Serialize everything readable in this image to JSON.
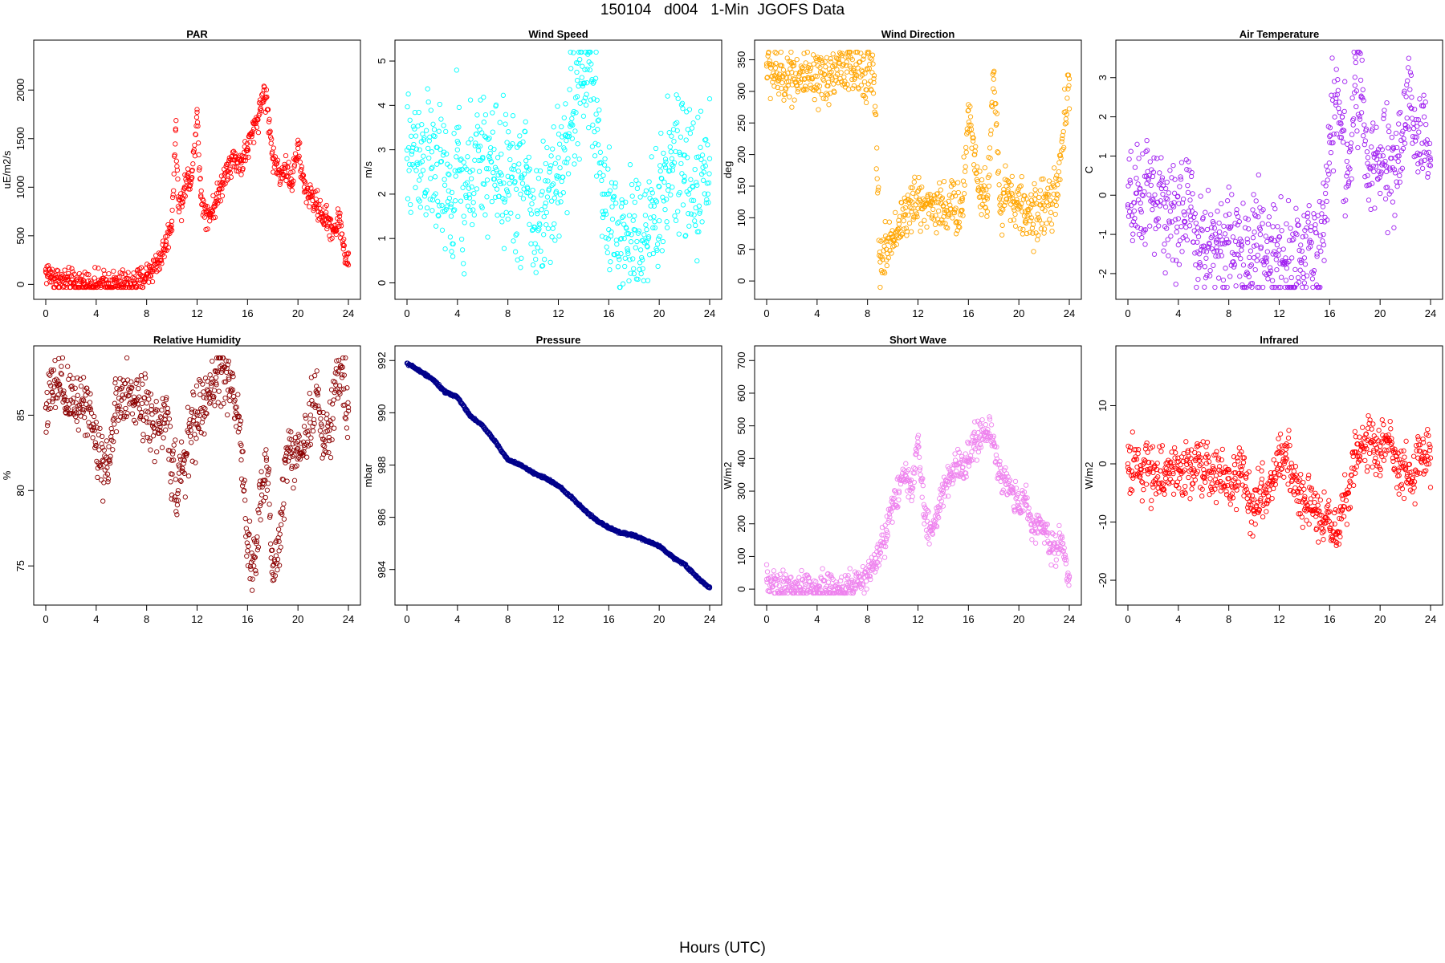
{
  "figure": {
    "title": "150104   d004   1-Min  JGOFS Data",
    "xlabel": "Hours (UTC)"
  },
  "chart_data": [
    {
      "type": "scatter",
      "title": "PAR",
      "xlabel": "",
      "ylabel": "uE/m2/s",
      "color": "#ff0000",
      "xlim": [
        0,
        24
      ],
      "ylim": [
        -30,
        2390
      ],
      "xticks": [
        0,
        4,
        8,
        12,
        16,
        20,
        24
      ],
      "yticks": [
        0,
        500,
        1000,
        1500,
        2000
      ],
      "noise": 0.05,
      "x": [
        0,
        0.5,
        1,
        2,
        3,
        4,
        5,
        6,
        7,
        7.5,
        8,
        8.5,
        9,
        9.5,
        10,
        10.3,
        10.5,
        10.8,
        11,
        11.3,
        11.6,
        12,
        12.3,
        12.7,
        13,
        13.5,
        14,
        14.5,
        15,
        15.5,
        16,
        16.5,
        17,
        17.3,
        17.6,
        18,
        18.5,
        19,
        19.5,
        20,
        20.5,
        21,
        21.5,
        22,
        22.5,
        23,
        23.3,
        23.6,
        24
      ],
      "y": [
        130,
        80,
        40,
        15,
        5,
        3,
        3,
        5,
        15,
        40,
        100,
        170,
        250,
        400,
        650,
        1600,
        900,
        800,
        1000,
        1100,
        1100,
        1800,
        900,
        750,
        720,
        850,
        1050,
        1250,
        1280,
        1250,
        1400,
        1600,
        1800,
        2000,
        1800,
        1300,
        1150,
        1200,
        1050,
        1400,
        1000,
        900,
        820,
        700,
        620,
        560,
        700,
        400,
        200
      ]
    },
    {
      "type": "scatter",
      "title": "Wind Speed",
      "xlabel": "",
      "ylabel": "m/s",
      "color": "#00ffff",
      "xlim": [
        0,
        24
      ],
      "ylim": [
        -0.1,
        5.2
      ],
      "xticks": [
        0,
        4,
        8,
        12,
        16,
        20,
        24
      ],
      "yticks": [
        0,
        1,
        2,
        3,
        4,
        5
      ],
      "noise": 0.25,
      "x": [
        0,
        1,
        2,
        3,
        3.5,
        4,
        4.5,
        5,
        6,
        7,
        8,
        9,
        9.5,
        10,
        11,
        11.5,
        12,
        12.5,
        13,
        13.5,
        14,
        14.5,
        15,
        15.5,
        16,
        17,
        18,
        19,
        20,
        20.5,
        21,
        22,
        23,
        24
      ],
      "y": [
        2.8,
        3.0,
        2.6,
        2.2,
        1.5,
        3.0,
        1.5,
        2.5,
        2.8,
        2.6,
        2.4,
        2.0,
        2.6,
        1.2,
        1.8,
        2.2,
        2.4,
        3.0,
        3.6,
        4.2,
        4.5,
        4.8,
        3.8,
        2.0,
        1.2,
        1.0,
        1.2,
        1.2,
        1.4,
        2.6,
        2.8,
        2.4,
        2.2,
        2.8
      ]
    },
    {
      "type": "scatter",
      "title": "Wind Direction",
      "xlabel": "",
      "ylabel": "deg",
      "color": "#ffa500",
      "xlim": [
        0,
        24
      ],
      "ylim": [
        -10,
        362
      ],
      "xticks": [
        0,
        4,
        8,
        12,
        16,
        20,
        24
      ],
      "yticks": [
        0,
        50,
        100,
        150,
        200,
        250,
        300,
        350
      ],
      "noise": 0.1,
      "x": [
        0,
        1,
        2,
        3,
        4,
        5,
        6,
        7,
        8,
        8.5,
        9,
        9.5,
        10,
        10.5,
        11,
        11.5,
        12,
        13,
        14,
        15,
        15.5,
        16,
        16.5,
        17,
        17.5,
        18,
        18.5,
        19,
        19.5,
        20,
        20.5,
        21,
        22,
        23,
        24
      ],
      "y": [
        340,
        320,
        330,
        320,
        310,
        325,
        340,
        330,
        335,
        320,
        30,
        50,
        70,
        90,
        105,
        115,
        125,
        120,
        118,
        115,
        112,
        270,
        200,
        140,
        130,
        330,
        120,
        150,
        130,
        120,
        110,
        100,
        120,
        130,
        320
      ]
    },
    {
      "type": "scatter",
      "title": "Air Temperature",
      "xlabel": "",
      "ylabel": "C",
      "color": "#a020f0",
      "xlim": [
        0,
        24
      ],
      "ylim": [
        -2.35,
        3.65
      ],
      "xticks": [
        0,
        4,
        8,
        12,
        16,
        20,
        24
      ],
      "yticks": [
        -2,
        -1,
        0,
        1,
        2,
        3
      ],
      "noise": 0.2,
      "x": [
        0,
        0.5,
        1,
        1.5,
        2,
        3,
        4,
        4.5,
        5,
        5.5,
        6,
        7,
        8,
        9,
        9.5,
        10,
        10.5,
        11,
        11.5,
        12,
        12.5,
        13,
        14,
        15,
        15.5,
        16,
        16.5,
        17,
        17.5,
        18,
        18.5,
        19,
        19.5,
        20,
        20.5,
        21,
        21.5,
        22,
        22.5,
        23,
        23.5,
        24
      ],
      "y": [
        -0.3,
        -0.4,
        -0.2,
        0.3,
        -0.2,
        -0.3,
        -0.6,
        -0.5,
        -0.3,
        -1.2,
        -1.3,
        -1.2,
        -1.2,
        -1.4,
        -2.0,
        -1.3,
        -1.0,
        -1.6,
        -1.5,
        -1.4,
        -1.6,
        -1.6,
        -1.6,
        -1.5,
        -1.0,
        1.5,
        2.3,
        2.0,
        0.3,
        2.8,
        2.5,
        0.5,
        0.6,
        1.0,
        0.6,
        0.7,
        1.0,
        1.8,
        2.5,
        0.8,
        2.0,
        0.9
      ]
    },
    {
      "type": "scatter",
      "title": "Relative Humidity",
      "xlabel": "",
      "ylabel": "%",
      "color": "#8b0000",
      "xlim": [
        0,
        24
      ],
      "ylim": [
        73.2,
        88.8
      ],
      "xticks": [
        0,
        4,
        8,
        12,
        16,
        20,
        24
      ],
      "yticks": [
        75,
        80,
        85
      ],
      "noise": 0.12,
      "x": [
        0,
        0.5,
        1,
        1.5,
        2,
        3,
        3.5,
        4,
        4.5,
        5,
        5.5,
        6,
        7,
        8,
        8.5,
        9,
        9.5,
        10,
        10.5,
        11,
        11.5,
        12,
        12.5,
        13,
        13.5,
        14,
        14.5,
        15,
        15.5,
        16,
        16.5,
        17,
        17.5,
        18,
        18.5,
        19,
        19.5,
        20,
        20.5,
        21,
        21.5,
        22,
        22.5,
        23,
        23.5,
        24
      ],
      "y": [
        85.5,
        86.5,
        87,
        86,
        86,
        86,
        85.5,
        83,
        82,
        82,
        85,
        86,
        86.2,
        85.8,
        84.5,
        83.8,
        85,
        82,
        80,
        82,
        84,
        85,
        85.5,
        86.5,
        87.5,
        88,
        87.5,
        86,
        83,
        76,
        75,
        79,
        82,
        75,
        76,
        82,
        82.5,
        82.8,
        83,
        85,
        86.5,
        83,
        84,
        87,
        87.5,
        85.5
      ]
    },
    {
      "type": "scatter",
      "title": "Pressure",
      "xlabel": "",
      "ylabel": "mbar",
      "color": "#00008b",
      "xlim": [
        0,
        24
      ],
      "ylim": [
        983.1,
        992.1
      ],
      "xticks": [
        0,
        4,
        8,
        12,
        16,
        20,
        24
      ],
      "yticks": [
        984,
        986,
        988,
        990,
        992
      ],
      "noise": 0.004,
      "x": [
        0,
        1,
        2,
        3,
        4,
        5,
        6,
        7,
        8,
        9,
        10,
        11,
        12,
        13,
        14,
        15,
        16,
        17,
        18,
        19,
        20,
        21,
        22,
        23,
        24
      ],
      "y": [
        991.9,
        991.6,
        991.3,
        990.8,
        990.6,
        989.9,
        989.5,
        988.9,
        988.2,
        988.0,
        987.7,
        987.5,
        987.2,
        986.8,
        986.3,
        985.9,
        985.6,
        985.4,
        985.3,
        985.1,
        984.9,
        984.5,
        984.2,
        983.7,
        983.3
      ]
    },
    {
      "type": "scatter",
      "title": "Short Wave",
      "xlabel": "",
      "ylabel": "W/m2",
      "color": "#ee82ee",
      "xlim": [
        0,
        24
      ],
      "ylim": [
        -12,
        708
      ],
      "xticks": [
        0,
        4,
        8,
        12,
        16,
        20,
        24
      ],
      "yticks": [
        0,
        100,
        200,
        300,
        400,
        500,
        600,
        700
      ],
      "noise": 0.06,
      "x": [
        0,
        0.5,
        1,
        2,
        3,
        4,
        5,
        6,
        7,
        8,
        8.5,
        9,
        9.5,
        10,
        10.5,
        11,
        11.5,
        12,
        12.5,
        13,
        13.5,
        14,
        14.5,
        15,
        15.5,
        16,
        16.5,
        17,
        17.5,
        18,
        18.5,
        19,
        19.5,
        20,
        20.5,
        21,
        21.5,
        22,
        22.5,
        23,
        23.5,
        24
      ],
      "y": [
        30,
        20,
        10,
        5,
        2,
        2,
        3,
        5,
        15,
        40,
        70,
        110,
        180,
        250,
        300,
        350,
        300,
        450,
        220,
        180,
        230,
        300,
        350,
        380,
        360,
        400,
        450,
        470,
        480,
        450,
        350,
        320,
        300,
        250,
        280,
        200,
        200,
        180,
        140,
        130,
        140,
        40
      ]
    },
    {
      "type": "scatter",
      "title": "Infrared",
      "xlabel": "",
      "ylabel": "W/m2",
      "color": "#ff0000",
      "xlim": [
        0,
        24
      ],
      "ylim": [
        -22.2,
        18.2
      ],
      "xticks": [
        0,
        4,
        8,
        12,
        16,
        20,
        24
      ],
      "yticks": [
        -20,
        -10,
        0,
        10
      ],
      "noise": 0.1,
      "x": [
        0,
        1,
        2,
        3,
        4,
        5,
        5.5,
        6,
        7,
        8,
        8.5,
        9,
        9.5,
        10,
        10.5,
        11,
        11.5,
        12,
        12.5,
        13,
        13.5,
        14,
        14.5,
        15,
        15.5,
        16,
        16.5,
        17,
        17.5,
        18,
        18.5,
        19,
        19.5,
        20,
        20.5,
        21,
        21.5,
        22,
        22.5,
        23,
        23.5,
        24
      ],
      "y": [
        0,
        -1,
        -1.5,
        -1.5,
        -1,
        -1,
        1,
        -1,
        -2,
        -2.5,
        -2.5,
        -1,
        -5,
        -8,
        -4,
        -5,
        -3,
        2,
        1,
        -3,
        -5,
        -6,
        -6,
        -8,
        -10,
        -11,
        -12,
        -8,
        -5,
        2,
        3,
        4,
        2,
        3,
        4,
        1,
        -2,
        -1,
        -3,
        1,
        2,
        1
      ]
    }
  ]
}
